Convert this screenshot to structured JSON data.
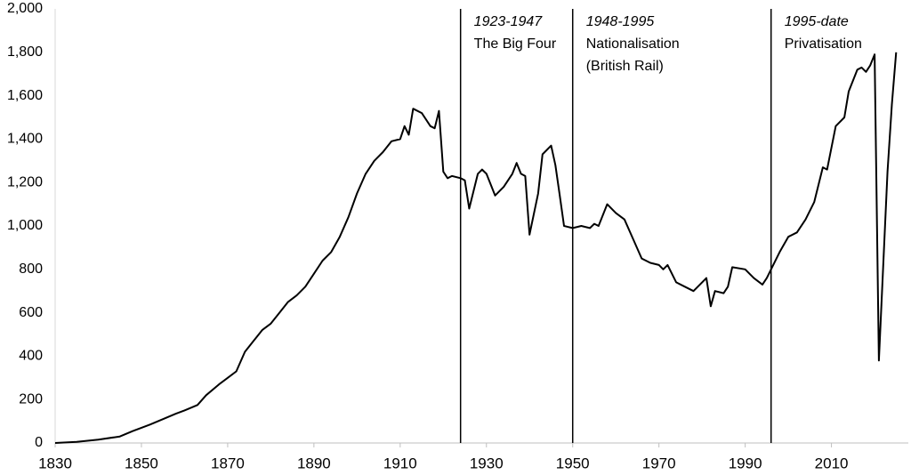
{
  "chart_data": {
    "type": "line",
    "x": [
      1830,
      1835,
      1840,
      1845,
      1848,
      1850,
      1852,
      1855,
      1858,
      1860,
      1863,
      1865,
      1868,
      1870,
      1872,
      1874,
      1876,
      1878,
      1880,
      1882,
      1884,
      1886,
      1888,
      1890,
      1892,
      1894,
      1896,
      1898,
      1900,
      1902,
      1904,
      1906,
      1908,
      1910,
      1911,
      1912,
      1913,
      1915,
      1917,
      1918,
      1919,
      1920,
      1921,
      1922,
      1924,
      1925,
      1926,
      1928,
      1929,
      1930,
      1932,
      1934,
      1936,
      1937,
      1938,
      1939,
      1940,
      1942,
      1943,
      1945,
      1946,
      1947,
      1948,
      1950,
      1952,
      1954,
      1955,
      1956,
      1958,
      1960,
      1962,
      1964,
      1966,
      1968,
      1970,
      1971,
      1972,
      1974,
      1976,
      1978,
      1980,
      1981,
      1982,
      1983,
      1985,
      1986,
      1987,
      1990,
      1992,
      1994,
      1995,
      1998,
      2000,
      2002,
      2004,
      2006,
      2008,
      2009,
      2011,
      2013,
      2014,
      2016,
      2017,
      2018,
      2019,
      2020,
      2021,
      2023,
      2024,
      2025
    ],
    "series": [
      {
        "color": "#000000",
        "values": [
          0,
          5,
          15,
          30,
          55,
          70,
          85,
          110,
          135,
          150,
          175,
          220,
          270,
          300,
          330,
          420,
          470,
          520,
          550,
          600,
          650,
          680,
          720,
          780,
          840,
          880,
          950,
          1040,
          1150,
          1240,
          1300,
          1340,
          1390,
          1400,
          1460,
          1420,
          1540,
          1520,
          1460,
          1450,
          1530,
          1250,
          1220,
          1230,
          1220,
          1210,
          1080,
          1240,
          1260,
          1240,
          1140,
          1180,
          1240,
          1290,
          1240,
          1230,
          960,
          1150,
          1330,
          1370,
          1280,
          1140,
          1000,
          990,
          1000,
          990,
          1010,
          1000,
          1100,
          1060,
          1030,
          940,
          850,
          830,
          820,
          800,
          820,
          740,
          720,
          700,
          740,
          760,
          630,
          700,
          690,
          720,
          810,
          800,
          760,
          730,
          760,
          880,
          950,
          970,
          1030,
          1110,
          1270,
          1260,
          1460,
          1500,
          1620,
          1720,
          1730,
          1710,
          1740,
          1790,
          380,
          1250,
          1560,
          1800
        ]
      }
    ],
    "xlim": [
      1830,
      2027
    ],
    "xticks": [
      1830,
      1850,
      1870,
      1890,
      1910,
      1930,
      1950,
      1970,
      1990,
      2010
    ],
    "ylim": [
      0,
      2000
    ],
    "yticks": [
      0,
      200,
      400,
      600,
      800,
      {
        "value": 1000,
        "label": "1,000"
      },
      {
        "value": 1200,
        "label": "1,200"
      },
      {
        "value": 1400,
        "label": "1,400"
      },
      {
        "value": 1600,
        "label": "1,600"
      },
      {
        "value": 1800,
        "label": "1,800"
      },
      {
        "value": 2000,
        "label": "2,000"
      }
    ],
    "grid": false,
    "annotations": [
      {
        "x": 1924,
        "title": "1923-1947",
        "lines": [
          "The Big Four"
        ]
      },
      {
        "x": 1950,
        "title": "1948-1995",
        "lines": [
          "Nationalisation",
          "(British Rail)"
        ]
      },
      {
        "x": 1996,
        "title": "1995-date",
        "lines": [
          "Privatisation"
        ]
      }
    ]
  }
}
